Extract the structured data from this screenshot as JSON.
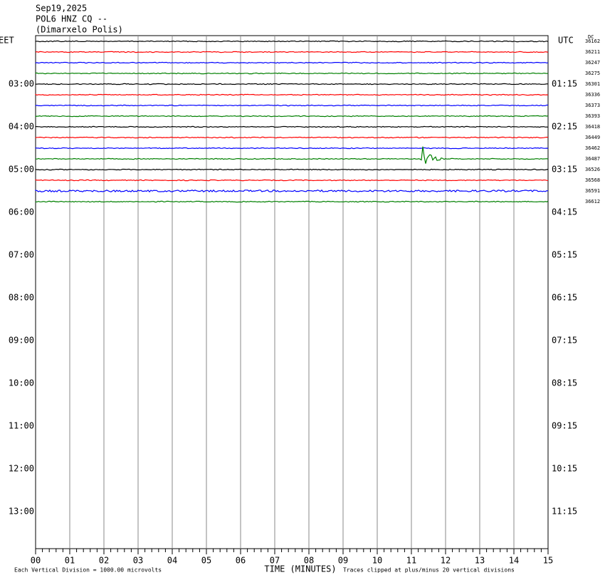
{
  "header": {
    "date": "Sep19,2025",
    "station": "POL6 HNZ CQ --",
    "location": "(Dimarxelo Polis)"
  },
  "left_axis": {
    "title": "EET",
    "labels": [
      "03:00",
      "04:00",
      "05:00",
      "06:00",
      "07:00",
      "08:00",
      "09:00",
      "10:00",
      "11:00",
      "12:00",
      "13:00"
    ]
  },
  "right_axis": {
    "title": "UTC",
    "labels": [
      "01:15",
      "02:15",
      "03:15",
      "04:15",
      "05:15",
      "06:15",
      "07:15",
      "08:15",
      "09:15",
      "10:15",
      "11:15"
    ]
  },
  "dc_title": "DC",
  "traces": [
    {
      "color": "#000000",
      "dc": "36162"
    },
    {
      "color": "#ff0000",
      "dc": "36211"
    },
    {
      "color": "#0000ff",
      "dc": "36247"
    },
    {
      "color": "#008000",
      "dc": "36275"
    },
    {
      "color": "#000000",
      "dc": "36301"
    },
    {
      "color": "#ff0000",
      "dc": "36336"
    },
    {
      "color": "#0000ff",
      "dc": "36373"
    },
    {
      "color": "#008000",
      "dc": "36393"
    },
    {
      "color": "#000000",
      "dc": "36418"
    },
    {
      "color": "#ff0000",
      "dc": "36449"
    },
    {
      "color": "#0000ff",
      "dc": "36462"
    },
    {
      "color": "#008000",
      "dc": "36487"
    },
    {
      "color": "#000000",
      "dc": "36526"
    },
    {
      "color": "#ff0000",
      "dc": "36568"
    },
    {
      "color": "#0000ff",
      "dc": "36591"
    },
    {
      "color": "#008000",
      "dc": "36612"
    }
  ],
  "x_axis": {
    "title": "TIME (MINUTES)",
    "labels": [
      "00",
      "01",
      "02",
      "03",
      "04",
      "05",
      "06",
      "07",
      "08",
      "09",
      "10",
      "11",
      "12",
      "13",
      "14",
      "15"
    ]
  },
  "footer": {
    "scale": "Each Vertical Division = 1000.00 microvolts",
    "clip": "Traces clipped at plus/minus 20 vertical divisions"
  }
}
